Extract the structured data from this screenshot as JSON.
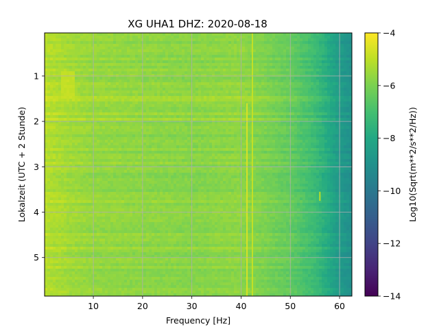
{
  "chart_data": {
    "type": "heatmap",
    "title": "XG UHA1  DHZ: 2020-08-18",
    "xlabel": "Frequency [Hz]",
    "ylabel": "Lokalzeit (UTC + 2 Stunde)",
    "x_range": [
      0.1,
      62.5
    ],
    "y_range": [
      0.05,
      5.85
    ],
    "y_inverted": true,
    "x_ticks": [
      {
        "value": 10,
        "label": "10"
      },
      {
        "value": 20,
        "label": "20"
      },
      {
        "value": 30,
        "label": "30"
      },
      {
        "value": 40,
        "label": "40"
      },
      {
        "value": 50,
        "label": "50"
      },
      {
        "value": 60,
        "label": "60"
      }
    ],
    "y_ticks": [
      {
        "value": 1,
        "label": "1"
      },
      {
        "value": 2,
        "label": "2"
      },
      {
        "value": 3,
        "label": "3"
      },
      {
        "value": 4,
        "label": "4"
      },
      {
        "value": 5,
        "label": "5"
      }
    ],
    "grid": true,
    "colorbar": {
      "label": "Log10(Sqrt(m**2/s**2/Hz))",
      "colormap": "viridis",
      "range": [
        -14,
        -4
      ],
      "ticks": [
        {
          "value": -4,
          "label": "−4"
        },
        {
          "value": -6,
          "label": "−6"
        },
        {
          "value": -8,
          "label": "−8"
        },
        {
          "value": -10,
          "label": "−10"
        },
        {
          "value": -12,
          "label": "−12"
        },
        {
          "value": -14,
          "label": "−14"
        }
      ]
    },
    "spectral_profile": {
      "frequency_hz": [
        0.1,
        5,
        10,
        20,
        30,
        40,
        45,
        50,
        55,
        58,
        60,
        62.5
      ],
      "level": [
        -5.1,
        -5.4,
        -5.6,
        -5.7,
        -5.8,
        -5.7,
        -6.0,
        -6.4,
        -7.2,
        -8.0,
        -8.6,
        -9.0
      ]
    },
    "features": [
      {
        "name": "line ~41 Hz",
        "frequency_hz": 41.2,
        "time_range": [
          1.6,
          5.85
        ],
        "level": -4.6
      },
      {
        "name": "line ~42 Hz",
        "frequency_hz": 42.3,
        "time_range": [
          0.05,
          5.85
        ],
        "level": -4.9
      },
      {
        "name": "line ~56 Hz",
        "frequency_hz": 56.0,
        "time_range": [
          3.55,
          3.75
        ],
        "level": -5.0
      },
      {
        "name": "low-frequency band",
        "frequency_range": [
          3.5,
          6.0
        ],
        "time_range": [
          0.9,
          1.5
        ],
        "level": -4.9
      }
    ]
  }
}
